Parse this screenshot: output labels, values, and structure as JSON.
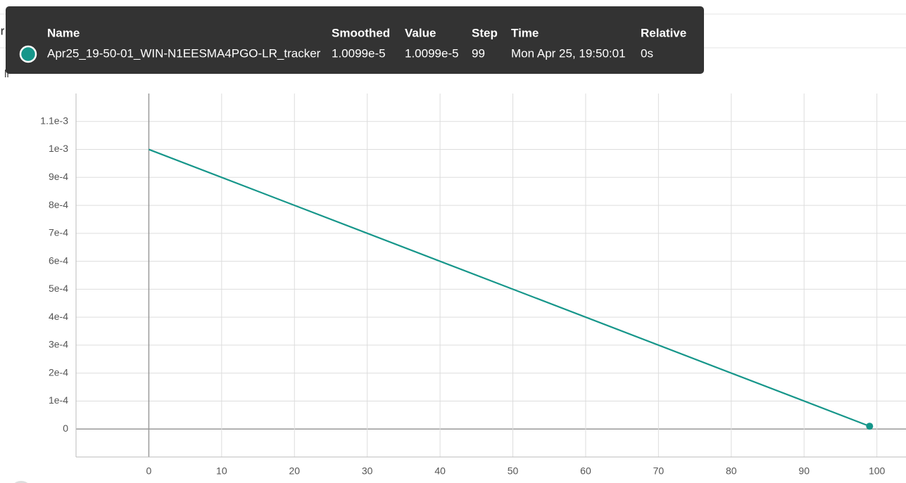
{
  "chart_data": {
    "type": "line",
    "title": "lr",
    "x": [
      0,
      99
    ],
    "series": [
      {
        "name": "Apr25_19-50-01_WIN-N1EESMA4PGO-LR_tracker",
        "color": "#16968a",
        "values": [
          0.001,
          1.0099e-05
        ]
      }
    ],
    "xlim": [
      -10,
      104
    ],
    "xticks": [
      0,
      10,
      20,
      30,
      40,
      50,
      60,
      70,
      80,
      90,
      100
    ],
    "ylim": [
      -0.0001,
      0.0012
    ],
    "yticks": [
      0,
      {
        "value": 0.0001,
        "label": "1e-4"
      },
      {
        "value": 0.0002,
        "label": "2e-4"
      },
      {
        "value": 0.0003,
        "label": "3e-4"
      },
      {
        "value": 0.0004,
        "label": "4e-4"
      },
      {
        "value": 0.0005,
        "label": "5e-4"
      },
      {
        "value": 0.0006,
        "label": "6e-4"
      },
      {
        "value": 0.0007,
        "label": "7e-4"
      },
      {
        "value": 0.0008,
        "label": "8e-4"
      },
      {
        "value": 0.0009,
        "label": "9e-4"
      },
      {
        "value": 0.001,
        "label": "1e-3"
      },
      {
        "value": 0.0011,
        "label": "1.1e-3"
      }
    ],
    "grid": true
  },
  "tooltip": {
    "headers": [
      "Name",
      "Smoothed",
      "Value",
      "Step",
      "Time",
      "Relative"
    ],
    "row": [
      "1.0099e-5",
      "1.0099e-5",
      "99",
      "Mon Apr 25, 19:50:01",
      "0s"
    ]
  }
}
